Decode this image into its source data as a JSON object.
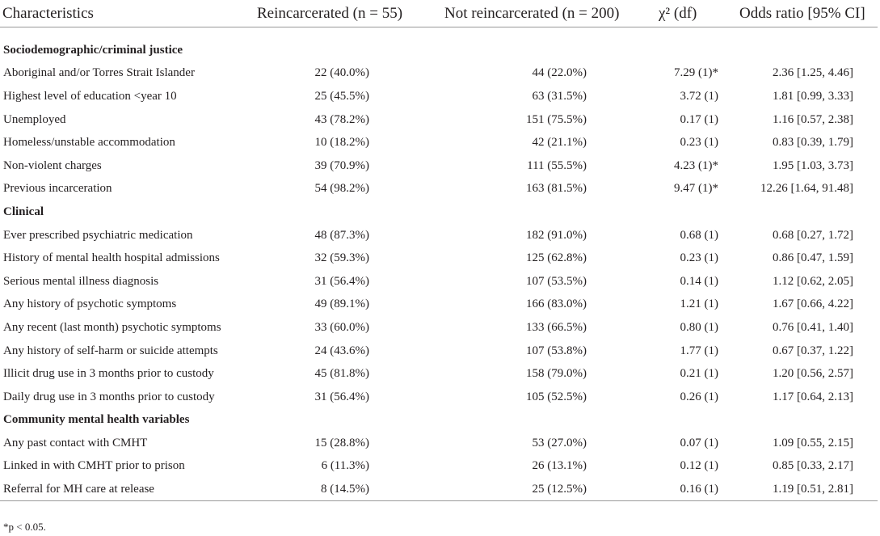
{
  "header": {
    "characteristics": "Characteristics",
    "reincarcerated": "Reincarcerated (n = 55)",
    "not_reincarcerated": "Not reincarcerated (n = 200)",
    "chi": "χ² (df)",
    "odds": "Odds ratio [95% CI]"
  },
  "sections": [
    {
      "title": "Sociodemographic/criminal justice",
      "rows": [
        [
          "Aboriginal and/or Torres Strait Islander",
          "22 (40.0%)",
          "44 (22.0%)",
          "7.29 (1)*",
          "2.36 [1.25, 4.46]"
        ],
        [
          "Highest level of education <year 10",
          "25 (45.5%)",
          "63 (31.5%)",
          "3.72 (1)",
          "1.81 [0.99, 3.33]"
        ],
        [
          "Unemployed",
          "43 (78.2%)",
          "151 (75.5%)",
          "0.17 (1)",
          "1.16 [0.57, 2.38]"
        ],
        [
          "Homeless/unstable accommodation",
          "10 (18.2%)",
          "42 (21.1%)",
          "0.23 (1)",
          "0.83 [0.39, 1.79]"
        ],
        [
          "Non-violent charges",
          "39 (70.9%)",
          "111 (55.5%)",
          "4.23 (1)*",
          "1.95 [1.03, 3.73]"
        ],
        [
          "Previous incarceration",
          "54 (98.2%)",
          "163 (81.5%)",
          "9.47 (1)*",
          "12.26 [1.64, 91.48]"
        ]
      ]
    },
    {
      "title": "Clinical",
      "rows": [
        [
          "Ever prescribed psychiatric medication",
          "48 (87.3%)",
          "182 (91.0%)",
          "0.68 (1)",
          "0.68 [0.27, 1.72]"
        ],
        [
          "History of mental health hospital admissions",
          "32 (59.3%)",
          "125 (62.8%)",
          "0.23 (1)",
          "0.86 [0.47, 1.59]"
        ],
        [
          "Serious mental illness diagnosis",
          "31 (56.4%)",
          "107 (53.5%)",
          "0.14 (1)",
          "1.12 [0.62, 2.05]"
        ],
        [
          "Any history of psychotic symptoms",
          "49 (89.1%)",
          "166 (83.0%)",
          "1.21 (1)",
          "1.67 [0.66, 4.22]"
        ],
        [
          "Any recent (last month) psychotic symptoms",
          "33 (60.0%)",
          "133 (66.5%)",
          "0.80 (1)",
          "0.76 [0.41, 1.40]"
        ],
        [
          "Any history of self-harm or suicide attempts",
          "24 (43.6%)",
          "107 (53.8%)",
          "1.77 (1)",
          "0.67 [0.37, 1.22]"
        ],
        [
          "Illicit drug use in 3 months prior to custody",
          "45 (81.8%)",
          "158 (79.0%)",
          "0.21 (1)",
          "1.20 [0.56, 2.57]"
        ],
        [
          "Daily drug use in 3 months prior to custody",
          "31 (56.4%)",
          "105 (52.5%)",
          "0.26 (1)",
          "1.17 [0.64, 2.13]"
        ]
      ]
    },
    {
      "title": "Community mental health variables",
      "rows": [
        [
          "Any past contact with CMHT",
          "15 (28.8%)",
          "53 (27.0%)",
          "0.07 (1)",
          "1.09 [0.55, 2.15]"
        ],
        [
          "Linked in with CMHT prior to prison",
          "6 (11.3%)",
          "26 (13.1%)",
          "0.12 (1)",
          "0.85 [0.33, 2.17]"
        ],
        [
          "Referral for MH care at release",
          "8 (14.5%)",
          "25 (12.5%)",
          "0.16 (1)",
          "1.19 [0.51, 2.81]"
        ]
      ]
    }
  ],
  "footnote": "*p < 0.05."
}
